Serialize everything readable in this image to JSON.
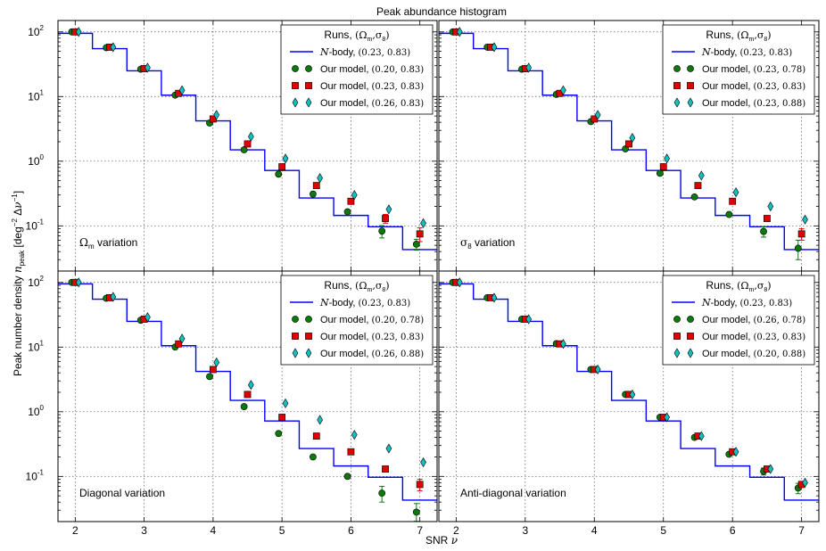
{
  "chart_data": {
    "type": "scatter",
    "title": "Peak abundance histogram",
    "xlabel": "SNR ν",
    "ylabel": "Peak number density n_peak [deg⁻² Δν⁻¹]",
    "xlim": [
      1.75,
      7.25
    ],
    "ylim": [
      0.02,
      150
    ],
    "yscale": "log",
    "xticks": [
      "2",
      "3",
      "4",
      "5",
      "6",
      "7"
    ],
    "yticks": [
      {
        "exp": "2"
      },
      {
        "exp": "1"
      },
      {
        "exp": "0"
      },
      {
        "exp": "-1"
      }
    ],
    "tick_base": "10",
    "grid": true,
    "legend_title": "Runs,",
    "legend_title_params": "(Ω",
    "legend_title_sub": "m",
    "legend_title_rest": ",σ",
    "legend_title_sub2": "8",
    "legend_title_close": ")",
    "nbody_label_a": "N",
    "nbody_label_b": "-body,",
    "model_label": "Our model,",
    "colors": {
      "nbody": "#0000ff",
      "green": "#0b7a0b",
      "red": "#e00000",
      "cyan": "#12c0c0"
    },
    "step_bins": [
      1.75,
      2.25,
      2.75,
      3.25,
      3.75,
      4.25,
      4.75,
      5.25,
      5.75,
      6.25,
      6.75,
      7.25
    ],
    "step_values": [
      95,
      55,
      25,
      10.5,
      4.2,
      1.5,
      0.72,
      0.27,
      0.145,
      0.097,
      0.043
    ],
    "panels": [
      {
        "annotation": "variation",
        "annot_sym": "Ω",
        "annot_sub": "m",
        "nbody_params": "(0.23, 0.83)",
        "series": [
          {
            "marker": "circle",
            "color": "green",
            "params": "(0.20, 0.83)",
            "x": [
              1.95,
              2.45,
              2.95,
              3.45,
              3.95,
              4.45,
              4.95,
              5.45,
              5.95,
              6.45,
              6.95
            ],
            "y": [
              100,
              57,
              26.5,
              10.5,
              3.9,
              1.5,
              0.63,
              0.31,
              0.165,
              0.083,
              0.052
            ],
            "err": [
              0,
              0,
              0,
              0,
              0,
              0,
              0,
              0,
              0,
              0.018,
              0.01
            ]
          },
          {
            "marker": "square",
            "color": "red",
            "params": "(0.23, 0.83)",
            "x": [
              2.0,
              2.5,
              3.0,
              3.5,
              4.0,
              4.5,
              5.0,
              5.5,
              6.0,
              6.5,
              7.0
            ],
            "y": [
              100,
              58,
              27,
              11.2,
              4.5,
              1.85,
              0.82,
              0.42,
              0.24,
              0.13,
              0.075
            ],
            "err": [
              0,
              0,
              0,
              0,
              0,
              0,
              0,
              0,
              0,
              0.02,
              0.018
            ]
          },
          {
            "marker": "diamond",
            "color": "cyan",
            "params": "(0.26, 0.83)",
            "x": [
              2.05,
              2.55,
              3.05,
              3.55,
              4.05,
              4.55,
              5.05,
              5.55,
              6.05,
              6.55,
              7.05
            ],
            "y": [
              100,
              58,
              28,
              12.5,
              5.2,
              2.4,
              1.1,
              0.55,
              0.3,
              0.18,
              0.11
            ],
            "err": [
              0,
              0,
              0,
              0,
              0,
              0,
              0,
              0,
              0,
              0,
              0
            ]
          }
        ]
      },
      {
        "annotation": "variation",
        "annot_sym": "σ",
        "annot_sub": "8",
        "nbody_params": "(0.23, 0.83)",
        "series": [
          {
            "marker": "circle",
            "color": "green",
            "params": "(0.23, 0.78)",
            "x": [
              1.95,
              2.45,
              2.95,
              3.45,
              3.95,
              4.45,
              4.95,
              5.45,
              5.95,
              6.45,
              6.95
            ],
            "y": [
              100,
              58,
              26.5,
              10.8,
              4.1,
              1.55,
              0.65,
              0.28,
              0.15,
              0.082,
              0.045
            ],
            "err": [
              0,
              0,
              0,
              0,
              0,
              0,
              0,
              0,
              0,
              0.015,
              0.015
            ]
          },
          {
            "marker": "square",
            "color": "red",
            "params": "(0.23, 0.83)",
            "x": [
              2.0,
              2.5,
              3.0,
              3.5,
              4.0,
              4.5,
              5.0,
              5.5,
              6.0,
              6.5,
              7.0
            ],
            "y": [
              100,
              58,
              27,
              11.2,
              4.5,
              1.85,
              0.82,
              0.42,
              0.24,
              0.13,
              0.075
            ],
            "err": [
              0,
              0,
              0,
              0,
              0,
              0,
              0,
              0,
              0,
              0,
              0.015
            ]
          },
          {
            "marker": "diamond",
            "color": "cyan",
            "params": "(0.23, 0.88)",
            "x": [
              2.05,
              2.55,
              3.05,
              3.55,
              4.05,
              4.55,
              5.05,
              5.55,
              6.05,
              6.55,
              7.05
            ],
            "y": [
              100,
              58,
              28,
              12.5,
              5.2,
              2.3,
              1.1,
              0.6,
              0.33,
              0.2,
              0.125
            ],
            "err": [
              0,
              0,
              0,
              0,
              0,
              0,
              0,
              0,
              0,
              0,
              0
            ]
          }
        ]
      },
      {
        "annotation": "Diagonal variation",
        "annot_sym": "",
        "annot_sub": "",
        "nbody_params": "(0.23, 0.83)",
        "series": [
          {
            "marker": "circle",
            "color": "green",
            "params": "(0.20, 0.78)",
            "x": [
              1.95,
              2.45,
              2.95,
              3.45,
              3.95,
              4.45,
              4.95,
              5.45,
              5.95,
              6.45,
              6.95
            ],
            "y": [
              100,
              57,
              26,
              10,
              3.5,
              1.2,
              0.46,
              0.2,
              0.1,
              0.055,
              0.028
            ],
            "err": [
              0,
              0,
              0,
              0,
              0,
              0,
              0,
              0,
              0,
              0.015,
              0.01
            ]
          },
          {
            "marker": "square",
            "color": "red",
            "params": "(0.23, 0.83)",
            "x": [
              2.0,
              2.5,
              3.0,
              3.5,
              4.0,
              4.5,
              5.0,
              5.5,
              6.0,
              6.5,
              7.0
            ],
            "y": [
              100,
              58,
              27,
              11.2,
              4.5,
              1.85,
              0.82,
              0.42,
              0.24,
              0.13,
              0.075
            ],
            "err": [
              0,
              0,
              0,
              0,
              0,
              0,
              0,
              0,
              0,
              0,
              0.015
            ]
          },
          {
            "marker": "diamond",
            "color": "cyan",
            "params": "(0.26, 0.88)",
            "x": [
              2.05,
              2.55,
              3.05,
              3.55,
              4.05,
              4.55,
              5.05,
              5.55,
              6.05,
              6.55,
              7.05
            ],
            "y": [
              100,
              60,
              29,
              13.5,
              5.8,
              2.6,
              1.35,
              0.75,
              0.44,
              0.27,
              0.165
            ],
            "err": [
              0,
              0,
              0,
              0,
              0,
              0,
              0,
              0,
              0,
              0,
              0
            ]
          }
        ]
      },
      {
        "annotation": "Anti-diagonal variation",
        "annot_sym": "",
        "annot_sub": "",
        "nbody_params": "(0.23, 0.83)",
        "series": [
          {
            "marker": "circle",
            "color": "green",
            "params": "(0.26, 0.78)",
            "x": [
              1.95,
              2.45,
              2.95,
              3.45,
              3.95,
              4.45,
              4.95,
              5.45,
              5.95,
              6.45,
              6.95
            ],
            "y": [
              100,
              58,
              27,
              11.3,
              4.5,
              1.85,
              0.82,
              0.4,
              0.22,
              0.12,
              0.066
            ],
            "err": [
              0,
              0,
              0,
              0,
              0,
              0,
              0,
              0,
              0,
              0.015,
              0.012
            ]
          },
          {
            "marker": "square",
            "color": "red",
            "params": "(0.23, 0.83)",
            "x": [
              2.0,
              2.5,
              3.0,
              3.5,
              4.0,
              4.5,
              5.0,
              5.5,
              6.0,
              6.5,
              7.0
            ],
            "y": [
              100,
              58,
              27,
              11.2,
              4.5,
              1.85,
              0.82,
              0.42,
              0.24,
              0.13,
              0.075
            ],
            "err": [
              0,
              0,
              0,
              0,
              0,
              0,
              0,
              0,
              0,
              0,
              0
            ]
          },
          {
            "marker": "diamond",
            "color": "cyan",
            "params": "(0.20, 0.88)",
            "x": [
              2.05,
              2.55,
              3.05,
              3.55,
              4.05,
              4.55,
              5.05,
              5.55,
              6.05,
              6.55,
              7.05
            ],
            "y": [
              100,
              58,
              27,
              11.2,
              4.5,
              1.85,
              0.82,
              0.42,
              0.24,
              0.13,
              0.08
            ],
            "err": [
              0,
              0,
              0,
              0,
              0,
              0,
              0,
              0,
              0,
              0,
              0
            ]
          }
        ]
      }
    ]
  }
}
